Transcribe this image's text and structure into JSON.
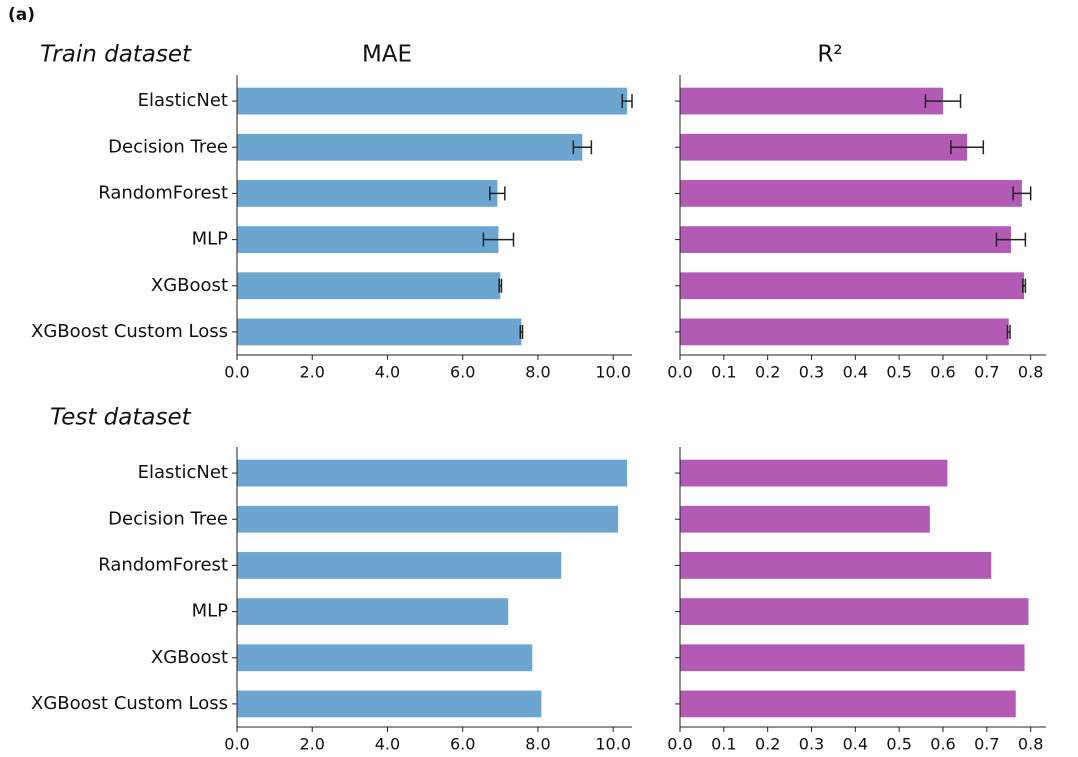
{
  "panel_label": "(a)",
  "chart_data": [
    {
      "type": "bar",
      "title": "MAE",
      "annotation": "Train dataset",
      "categories": [
        "ElasticNet",
        "Decision Tree",
        "RandomForest",
        "MLP",
        "XGBoost",
        "XGBoost Custom Loss"
      ],
      "values": [
        10.37,
        9.18,
        6.92,
        6.95,
        7.0,
        7.56
      ],
      "errors": [
        0.13,
        0.24,
        0.2,
        0.4,
        0.03,
        0.03
      ],
      "color": "#6ca6d0",
      "xlim": [
        0,
        10.5
      ],
      "xticks": [
        {
          "value": 0,
          "label": "0.0"
        },
        {
          "value": 2,
          "label": "2.0"
        },
        {
          "value": 4,
          "label": "4.0"
        },
        {
          "value": 6,
          "label": "6.0"
        },
        {
          "value": 8,
          "label": "8.0"
        },
        {
          "value": 10,
          "label": "10.0"
        }
      ]
    },
    {
      "type": "bar",
      "title": "R²",
      "values": [
        0.6,
        0.655,
        0.78,
        0.755,
        0.785,
        0.75
      ],
      "errors": [
        0.04,
        0.037,
        0.02,
        0.033,
        0.003,
        0.003
      ],
      "color": "#b35ab5",
      "xlim": [
        0,
        0.835
      ],
      "xticks": [
        {
          "value": 0,
          "label": "0.0"
        },
        0.1,
        0.2,
        0.3,
        0.4,
        0.5,
        0.6,
        0.7,
        0.8
      ]
    },
    {
      "type": "bar",
      "annotation": "Test dataset",
      "categories": [
        "ElasticNet",
        "Decision Tree",
        "RandomForest",
        "MLP",
        "XGBoost",
        "XGBoost Custom Loss"
      ],
      "values": [
        10.37,
        10.13,
        8.62,
        7.21,
        7.85,
        8.09
      ],
      "color": "#6ca6d0",
      "xlim": [
        0,
        10.5
      ],
      "xticks": [
        {
          "value": 0,
          "label": "0.0"
        },
        {
          "value": 2,
          "label": "2.0"
        },
        {
          "value": 4,
          "label": "4.0"
        },
        {
          "value": 6,
          "label": "6.0"
        },
        {
          "value": 8,
          "label": "8.0"
        },
        {
          "value": 10,
          "label": "10.0"
        }
      ]
    },
    {
      "type": "bar",
      "values": [
        0.61,
        0.57,
        0.71,
        0.795,
        0.786,
        0.766
      ],
      "color": "#b35ab5",
      "xlim": [
        0,
        0.835
      ],
      "xticks": [
        {
          "value": 0,
          "label": "0.0"
        },
        0.1,
        0.2,
        0.3,
        0.4,
        0.5,
        0.6,
        0.7,
        0.8
      ]
    }
  ]
}
